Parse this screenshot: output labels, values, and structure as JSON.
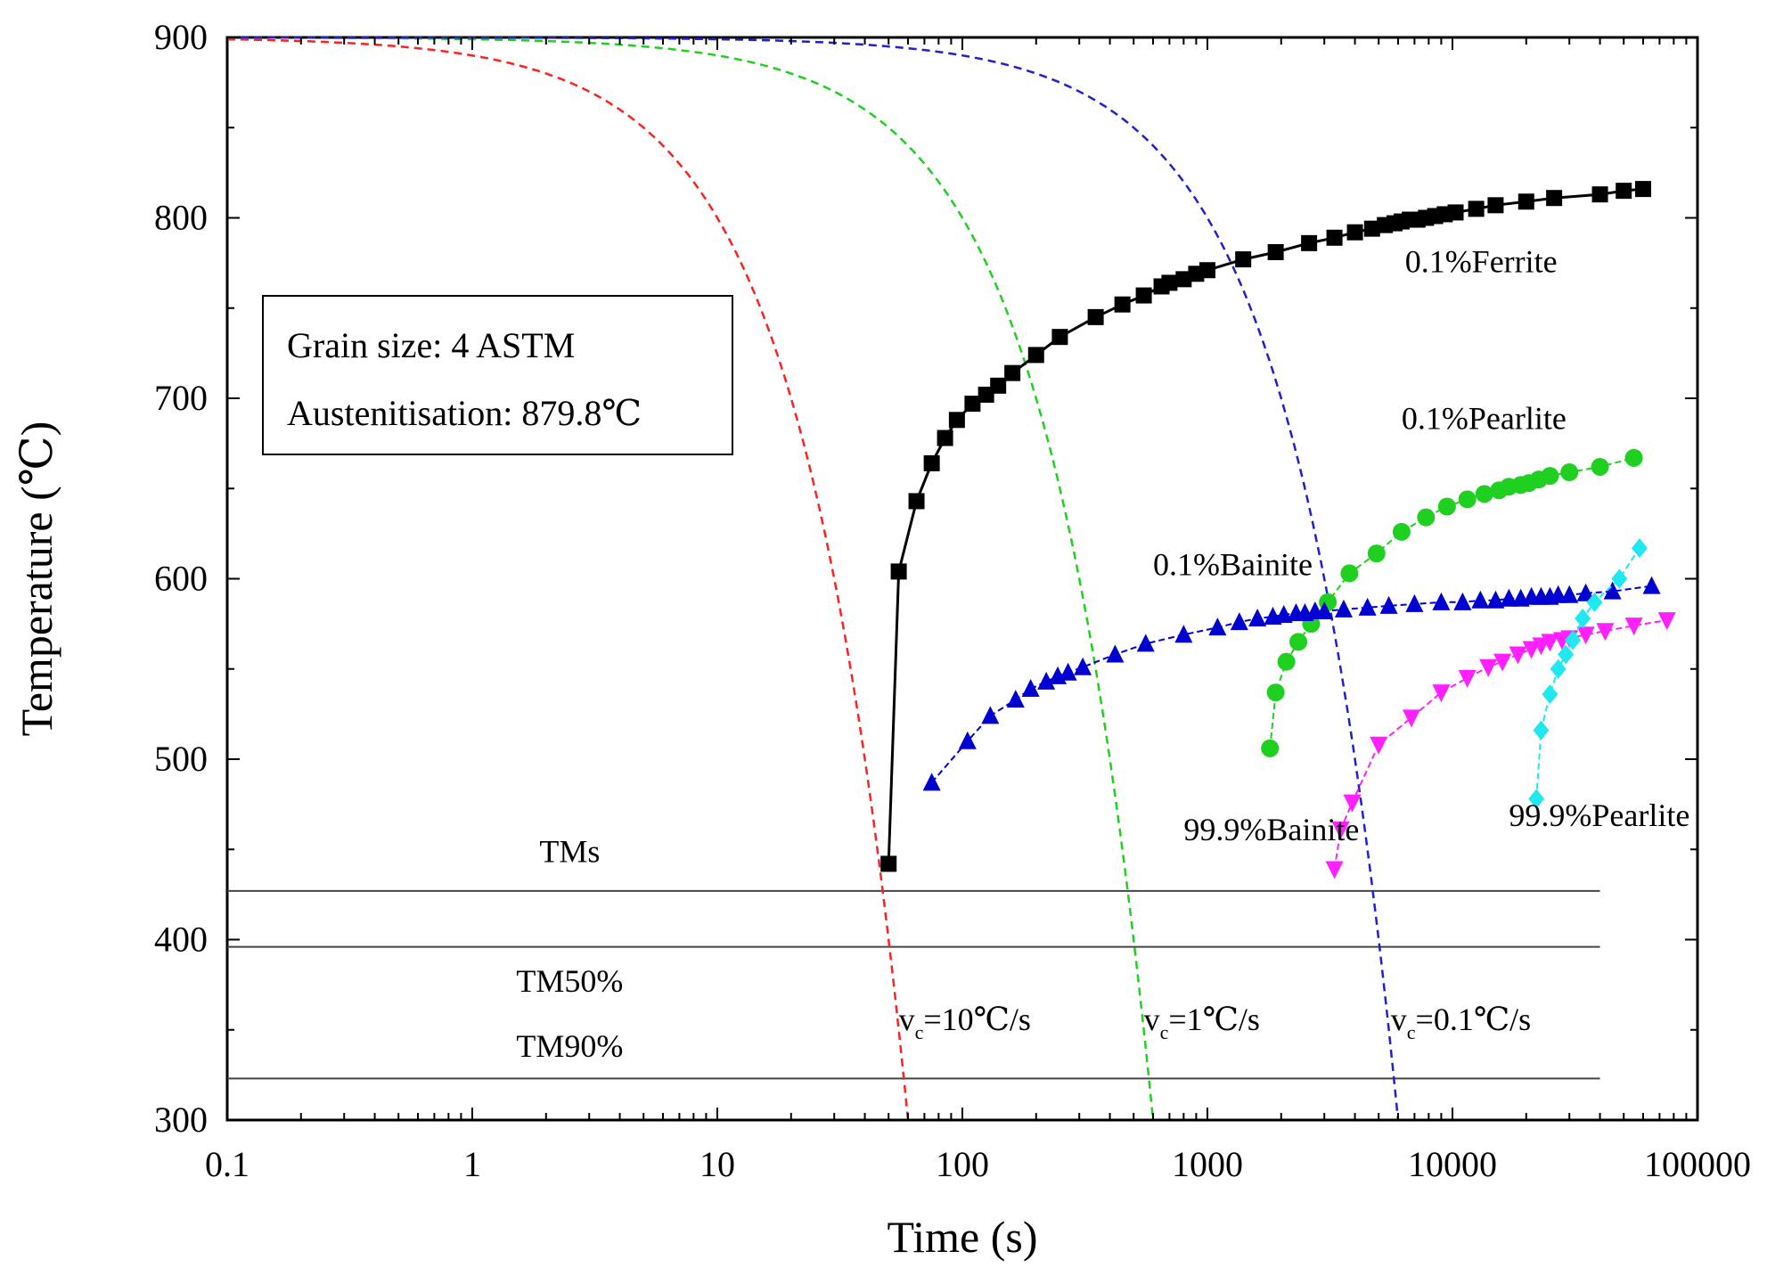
{
  "chart_data": {
    "type": "line",
    "title": "",
    "xlabel": "Time (s)",
    "ylabel": "Temperature (℃)",
    "xscale": "log",
    "xlim": [
      0.1,
      100000
    ],
    "ylim": [
      300,
      900
    ],
    "x_ticks": [
      0.1,
      1,
      10,
      100,
      1000,
      10000,
      100000
    ],
    "x_tick_labels": [
      "0.1",
      "1",
      "10",
      "100",
      "1000",
      "10000",
      "100000"
    ],
    "y_ticks": [
      300,
      400,
      500,
      600,
      700,
      800,
      900
    ],
    "y_tick_labels": [
      "300",
      "400",
      "500",
      "600",
      "700",
      "800",
      "900"
    ],
    "legend_box": {
      "line1": "Grain size: 4 ASTM",
      "line2": "Austenitisation: 879.8℃",
      "placement": "upper-left"
    },
    "cooling_curves": [
      {
        "name": "10C/s",
        "color": "#ff2020",
        "rate": 10,
        "label_main": "v",
        "label_sub": "c",
        "label_rest": "=10℃/s",
        "label_x": 55,
        "label_y": 350
      },
      {
        "name": "1C/s",
        "color": "#20d020",
        "rate": 1,
        "label_main": "v",
        "label_sub": "c",
        "label_rest": "=1℃/s",
        "label_x": 550,
        "label_y": 350
      },
      {
        "name": "0.1C/s",
        "color": "#2020d0",
        "rate": 0.1,
        "label_main": "v",
        "label_sub": "c",
        "label_rest": "=0.1℃/s",
        "label_x": 5600,
        "label_y": 350
      }
    ],
    "horizontal_lines": [
      {
        "name": "TMs",
        "y": 427,
        "label": "TMs",
        "label_x": 2.5,
        "label_y": 443
      },
      {
        "name": "TM50%",
        "y": 396,
        "label": "TM50%",
        "label_x": 2.5,
        "label_y": 371
      },
      {
        "name": "TM90%",
        "y": 323,
        "label": "TM90%",
        "label_x": 2.5,
        "label_y": 335
      }
    ],
    "series": [
      {
        "name": "0.1%Ferrite",
        "color": "#000000",
        "marker": "square",
        "x": [
          50,
          55,
          65,
          75,
          85,
          95,
          110,
          125,
          140,
          160,
          200,
          250,
          350,
          450,
          550,
          650,
          700,
          800,
          900,
          1000,
          1400,
          1900,
          2600,
          3300,
          4000,
          4700,
          5300,
          5800,
          6200,
          6700,
          7200,
          7800,
          8500,
          9300,
          10300,
          12500,
          15000,
          20000,
          26000,
          40000,
          50000,
          60000
        ],
        "y": [
          442,
          604,
          643,
          664,
          678,
          688,
          697,
          702,
          707,
          714,
          724,
          734,
          745,
          752,
          757,
          762,
          764,
          766,
          769,
          771,
          777,
          781,
          786,
          789,
          792,
          794,
          796,
          797,
          798,
          799,
          799,
          800,
          801,
          802,
          803,
          805,
          807,
          809,
          811,
          813,
          815,
          816
        ],
        "label": "0.1%Ferrite",
        "label_x": 6400,
        "label_y": 770
      },
      {
        "name": "0.1%Pearlite",
        "color": "#20d020",
        "marker": "circle",
        "x": [
          1800,
          1900,
          2100,
          2350,
          2650,
          3100,
          3800,
          4900,
          6200,
          7800,
          9500,
          11500,
          13500,
          15500,
          17000,
          19000,
          20500,
          22500,
          25000,
          30000,
          40000,
          55000
        ],
        "y": [
          506,
          537,
          554,
          565,
          575,
          587,
          603,
          614,
          626,
          634,
          640,
          644,
          647,
          649,
          651,
          652,
          653,
          655,
          657,
          659,
          662,
          667
        ],
        "label": "0.1%Pearlite",
        "label_x": 6200,
        "label_y": 683
      },
      {
        "name": "0.1%Bainite",
        "color": "#0000d0",
        "marker": "triangle-up",
        "x": [
          75,
          105,
          130,
          165,
          190,
          220,
          245,
          270,
          310,
          420,
          560,
          800,
          1100,
          1350,
          1600,
          1850,
          2050,
          2300,
          2500,
          2750,
          3000,
          3600,
          4500,
          5500,
          7000,
          9000,
          11000,
          13000,
          15000,
          17000,
          19000,
          21000,
          23000,
          25000,
          27000,
          30000,
          35000,
          45000,
          65000
        ],
        "y": [
          487,
          510,
          524,
          533,
          539,
          543,
          546,
          548,
          551,
          558,
          564,
          569,
          573,
          576,
          578,
          579,
          580,
          581,
          581,
          582,
          582,
          583,
          584,
          585,
          586,
          587,
          587,
          588,
          588,
          589,
          589,
          590,
          590,
          590,
          591,
          591,
          592,
          593,
          596
        ],
        "label": "0.1%Bainite",
        "label_x": 600,
        "label_y": 602
      },
      {
        "name": "99.9%Bainite",
        "color": "#ff20ff",
        "marker": "triangle-down",
        "x": [
          3300,
          3500,
          3900,
          5000,
          6800,
          9000,
          11500,
          14000,
          16000,
          18500,
          21000,
          23000,
          25000,
          28000,
          30000,
          35000,
          42000,
          55000,
          75000
        ],
        "y": [
          439,
          461,
          476,
          508,
          523,
          537,
          545,
          551,
          554,
          558,
          561,
          563,
          565,
          566,
          567,
          569,
          571,
          574,
          577
        ],
        "label": "99.9%Bainite",
        "label_x": 800,
        "label_y": 455
      },
      {
        "name": "99.9%Pearlite",
        "color": "#20e8f0",
        "marker": "diamond",
        "x": [
          22000,
          23000,
          25000,
          27000,
          29000,
          31000,
          34000,
          38000,
          48000,
          58000
        ],
        "y": [
          478,
          516,
          536,
          550,
          558,
          566,
          578,
          587,
          600,
          617
        ],
        "label": "99.9%Pearlite",
        "label_x": 17000,
        "label_y": 463
      }
    ]
  }
}
